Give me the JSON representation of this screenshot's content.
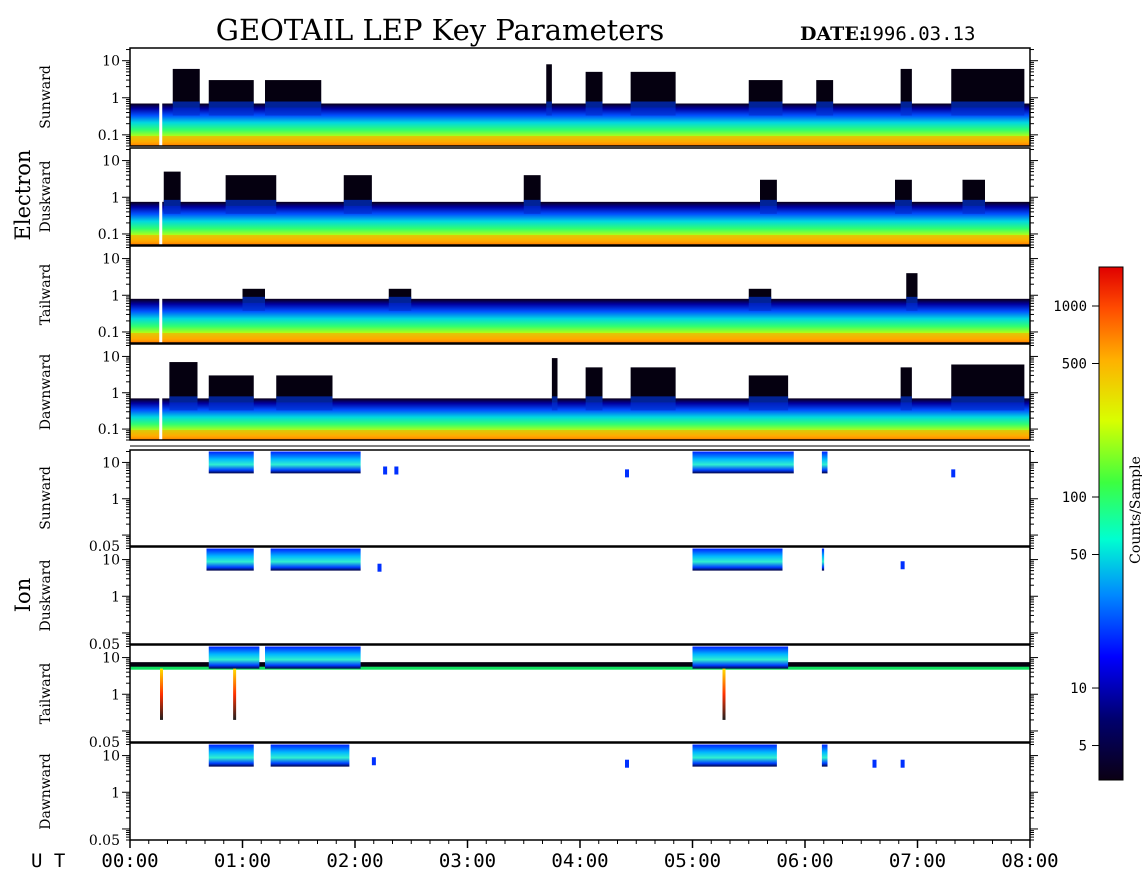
{
  "header": {
    "title": "GEOTAIL LEP Key Parameters",
    "date_label": "DATE:",
    "date_value": "1996.03.13"
  },
  "x_axis": {
    "label": "U T",
    "ticks": [
      "00:00",
      "01:00",
      "02:00",
      "03:00",
      "04:00",
      "05:00",
      "06:00",
      "07:00",
      "08:00"
    ]
  },
  "colorbar": {
    "label": "Counts/Sample",
    "ticks": [
      "1000",
      "500",
      "100",
      "50",
      "10",
      "5"
    ],
    "tick_values": [
      1000,
      500,
      100,
      50,
      10,
      5
    ],
    "range": [
      3.3,
      1600
    ],
    "colors": [
      "#0b0014",
      "#00006f",
      "#0000ff",
      "#0088ff",
      "#00ffd0",
      "#3cff40",
      "#d8ff00",
      "#ffb000",
      "#ff4b00",
      "#e00000"
    ]
  },
  "chart_data": {
    "type": "heatmap",
    "title": "GEOTAIL LEP Key Parameters",
    "xlabel": "U T",
    "x_range_hours": [
      0,
      8
    ],
    "zlabel": "Counts/Sample",
    "groups": [
      {
        "name": "Electron",
        "ylim": [
          0.05,
          22
        ],
        "yticks": [
          "10",
          "1",
          "0.1"
        ],
        "panels": [
          {
            "label": "Sunward",
            "base_top": 0.7,
            "bursts": [
              [
                0.38,
                0.62,
                6
              ],
              [
                0.7,
                1.1,
                3
              ],
              [
                1.2,
                1.7,
                3
              ],
              [
                3.7,
                3.75,
                8
              ],
              [
                4.05,
                4.2,
                5
              ],
              [
                4.45,
                4.85,
                5
              ],
              [
                5.5,
                5.8,
                3
              ],
              [
                6.1,
                6.25,
                3
              ],
              [
                6.85,
                6.95,
                6
              ],
              [
                7.3,
                7.95,
                6
              ]
            ]
          },
          {
            "label": "Duskward",
            "base_top": 0.75,
            "bursts": [
              [
                0.3,
                0.45,
                5
              ],
              [
                0.85,
                1.3,
                4
              ],
              [
                1.9,
                2.15,
                4
              ],
              [
                3.5,
                3.65,
                4
              ],
              [
                5.6,
                5.75,
                3
              ],
              [
                6.8,
                6.95,
                3
              ],
              [
                7.4,
                7.6,
                3
              ]
            ]
          },
          {
            "label": "Tailward",
            "base_top": 0.8,
            "bursts": [
              [
                1.0,
                1.2,
                1.5
              ],
              [
                2.3,
                2.5,
                1.5
              ],
              [
                5.5,
                5.7,
                1.5
              ],
              [
                6.9,
                7.0,
                4
              ]
            ]
          },
          {
            "label": "Dawnward",
            "base_top": 0.7,
            "bursts": [
              [
                0.35,
                0.6,
                7
              ],
              [
                0.7,
                1.1,
                3
              ],
              [
                1.3,
                1.8,
                3
              ],
              [
                3.75,
                3.8,
                9
              ],
              [
                4.05,
                4.2,
                5
              ],
              [
                4.45,
                4.85,
                5
              ],
              [
                5.5,
                5.85,
                3
              ],
              [
                6.85,
                6.95,
                5
              ],
              [
                7.3,
                7.95,
                6
              ]
            ]
          }
        ],
        "data_gap_hours": [
          0.26,
          0.28
        ]
      },
      {
        "name": "Ion",
        "ylim": [
          0.05,
          22
        ],
        "yticks": [
          "10",
          "1",
          "0.05"
        ],
        "panels": [
          {
            "label": "Sunward",
            "blocks": [
              [
                0.7,
                1.1
              ],
              [
                1.25,
                2.05
              ],
              [
                5.0,
                5.9
              ],
              [
                6.15,
                6.2
              ]
            ],
            "specks": [
              [
                2.25,
                6
              ],
              [
                2.35,
                6
              ],
              [
                4.4,
                5
              ],
              [
                7.3,
                5
              ]
            ]
          },
          {
            "label": "Duskward",
            "blocks": [
              [
                0.68,
                1.1
              ],
              [
                1.25,
                2.05
              ],
              [
                5.0,
                5.8
              ],
              [
                6.15,
                6.17
              ]
            ],
            "specks": [
              [
                2.2,
                6
              ],
              [
                6.85,
                7
              ]
            ]
          },
          {
            "label": "Tailward",
            "blocks": [
              [
                0.7,
                1.15
              ],
              [
                1.2,
                2.05
              ],
              [
                5.0,
                5.85
              ]
            ],
            "baseline": true,
            "spikes": [
              0.28,
              0.93,
              5.28
            ]
          },
          {
            "label": "Dawnward",
            "blocks": [
              [
                0.7,
                1.1
              ],
              [
                1.25,
                1.95
              ],
              [
                5.0,
                5.75
              ],
              [
                6.15,
                6.2
              ]
            ],
            "specks": [
              [
                2.15,
                7
              ],
              [
                4.4,
                6
              ],
              [
                6.6,
                6
              ],
              [
                6.85,
                6
              ]
            ]
          }
        ]
      }
    ]
  }
}
